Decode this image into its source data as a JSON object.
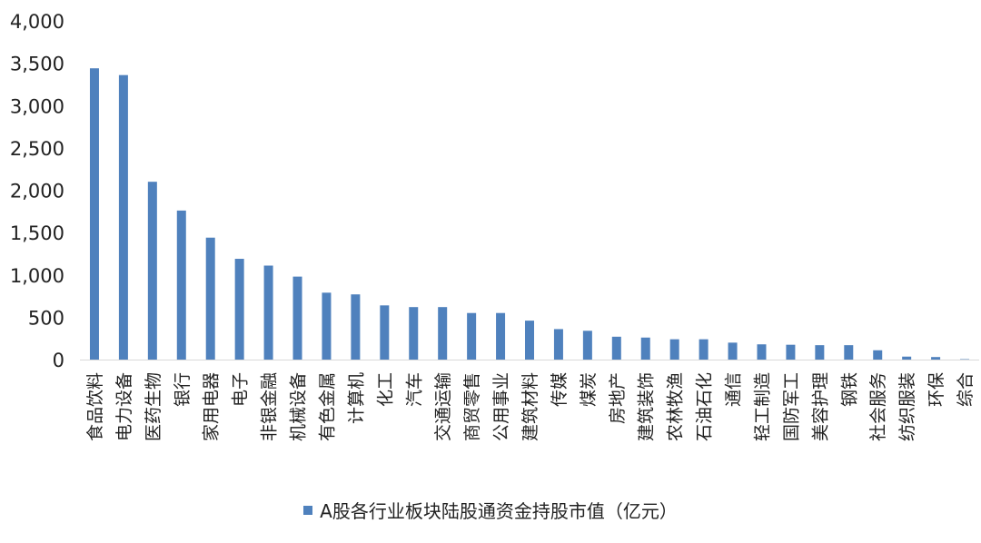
{
  "colors": {
    "bar": "#4f81bd",
    "axis": "#d9d9d9",
    "text": "#222222"
  },
  "chart_data": {
    "type": "bar",
    "categories": [
      "食品饮料",
      "电力设备",
      "医药生物",
      "银行",
      "家用电器",
      "电子",
      "非银金融",
      "机械设备",
      "有色金属",
      "计算机",
      "化工",
      "汽车",
      "交通运输",
      "商贸零售",
      "公用事业",
      "建筑材料",
      "传媒",
      "煤炭",
      "房地产",
      "建筑装饰",
      "农林牧渔",
      "石油石化",
      "通信",
      "轻工制造",
      "国防军工",
      "美容护理",
      "钢铁",
      "社会服务",
      "纺织服装",
      "环保",
      "综合"
    ],
    "series": [
      {
        "name": "A股各行业板块陆股通资金持股市值（亿元）",
        "values": [
          3440,
          3360,
          2100,
          1760,
          1440,
          1190,
          1110,
          980,
          790,
          770,
          640,
          620,
          620,
          550,
          550,
          460,
          360,
          340,
          270,
          260,
          240,
          240,
          200,
          180,
          175,
          170,
          170,
          110,
          35,
          30,
          5
        ]
      }
    ],
    "yticks": [
      "4,000",
      "3,500",
      "3,000",
      "2,500",
      "2,000",
      "1,500",
      "1,000",
      "500",
      "0"
    ],
    "ylim": [
      0,
      4000
    ],
    "grid": false,
    "legend_position": "bottom"
  }
}
